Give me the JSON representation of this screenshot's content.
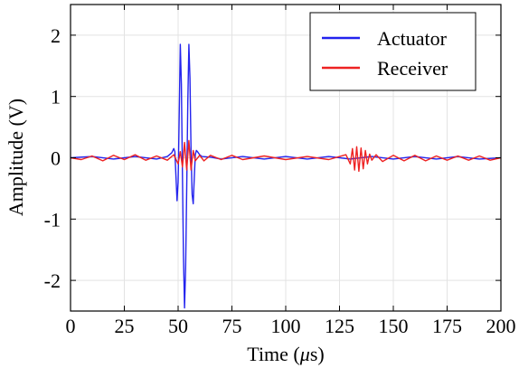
{
  "chart_data": {
    "type": "line",
    "title": "",
    "xlabel": "Time (",
    "xlabel_symbol": "μ",
    "xlabel_unit": "s)",
    "ylabel": "Amplitude (V)",
    "xlim": [
      0,
      200
    ],
    "ylim": [
      -2.5,
      2.5
    ],
    "xticks": [
      "0",
      "25",
      "50",
      "75",
      "100",
      "125",
      "150",
      "175",
      "200"
    ],
    "xtick_values": [
      0,
      25,
      50,
      75,
      100,
      125,
      150,
      175,
      200
    ],
    "yticks": [
      "2",
      "1",
      "0",
      "-1",
      "-2"
    ],
    "ytick_values": [
      2,
      1,
      0,
      -1,
      -2
    ],
    "grid": true,
    "legend_position": "top-right",
    "series": [
      {
        "name": "Actuator",
        "color": "#2323ee",
        "x": [
          0,
          10,
          20,
          30,
          40,
          45,
          47,
          48,
          48.5,
          49,
          49.5,
          50,
          50.5,
          51,
          51.5,
          52,
          52.5,
          53,
          53.5,
          54,
          54.5,
          55,
          55.5,
          56,
          56.5,
          57,
          57.5,
          58,
          58.5,
          59,
          60,
          61,
          65,
          70,
          80,
          90,
          100,
          110,
          120,
          130,
          140,
          150,
          160,
          170,
          180,
          190,
          200
        ],
        "y": [
          0,
          0.02,
          -0.02,
          0.02,
          -0.02,
          0.02,
          0.08,
          0.15,
          0.1,
          -0.3,
          -0.7,
          -0.4,
          0.7,
          1.85,
          1.2,
          -0.3,
          -1.6,
          -2.45,
          -1.8,
          -0.5,
          0.9,
          1.85,
          1.3,
          0.1,
          -0.6,
          -0.75,
          -0.35,
          0.05,
          0.12,
          0.1,
          0.05,
          0.02,
          0.01,
          -0.02,
          0.02,
          -0.02,
          0.02,
          -0.02,
          0.02,
          -0.02,
          0.02,
          -0.02,
          0.02,
          -0.02,
          0.02,
          -0.02,
          0
        ]
      },
      {
        "name": "Receiver",
        "color": "#ee2222",
        "x": [
          0,
          5,
          10,
          15,
          20,
          25,
          30,
          35,
          40,
          45,
          48,
          50,
          51,
          52,
          53,
          54,
          55,
          56,
          57,
          58,
          60,
          62,
          65,
          70,
          75,
          80,
          90,
          100,
          110,
          120,
          128,
          130,
          131,
          132,
          133,
          134,
          135,
          136,
          137,
          138,
          139,
          140,
          142,
          145,
          150,
          155,
          160,
          165,
          170,
          175,
          180,
          185,
          190,
          195,
          200
        ],
        "y": [
          0,
          -0.03,
          0.03,
          -0.05,
          0.04,
          -0.03,
          0.05,
          -0.04,
          0.03,
          -0.04,
          0.05,
          -0.1,
          0.1,
          -0.15,
          0.25,
          -0.2,
          0.28,
          -0.2,
          0.12,
          -0.05,
          0.04,
          -0.05,
          0.04,
          -0.03,
          0.04,
          -0.03,
          0.03,
          -0.03,
          0.02,
          -0.03,
          0.05,
          -0.1,
          0.15,
          -0.2,
          0.18,
          -0.22,
          0.16,
          -0.18,
          0.12,
          -0.1,
          0.06,
          -0.04,
          0.05,
          -0.06,
          0.04,
          -0.05,
          0.04,
          -0.05,
          0.03,
          -0.04,
          0.03,
          -0.04,
          0.03,
          -0.04,
          0
        ]
      }
    ]
  }
}
